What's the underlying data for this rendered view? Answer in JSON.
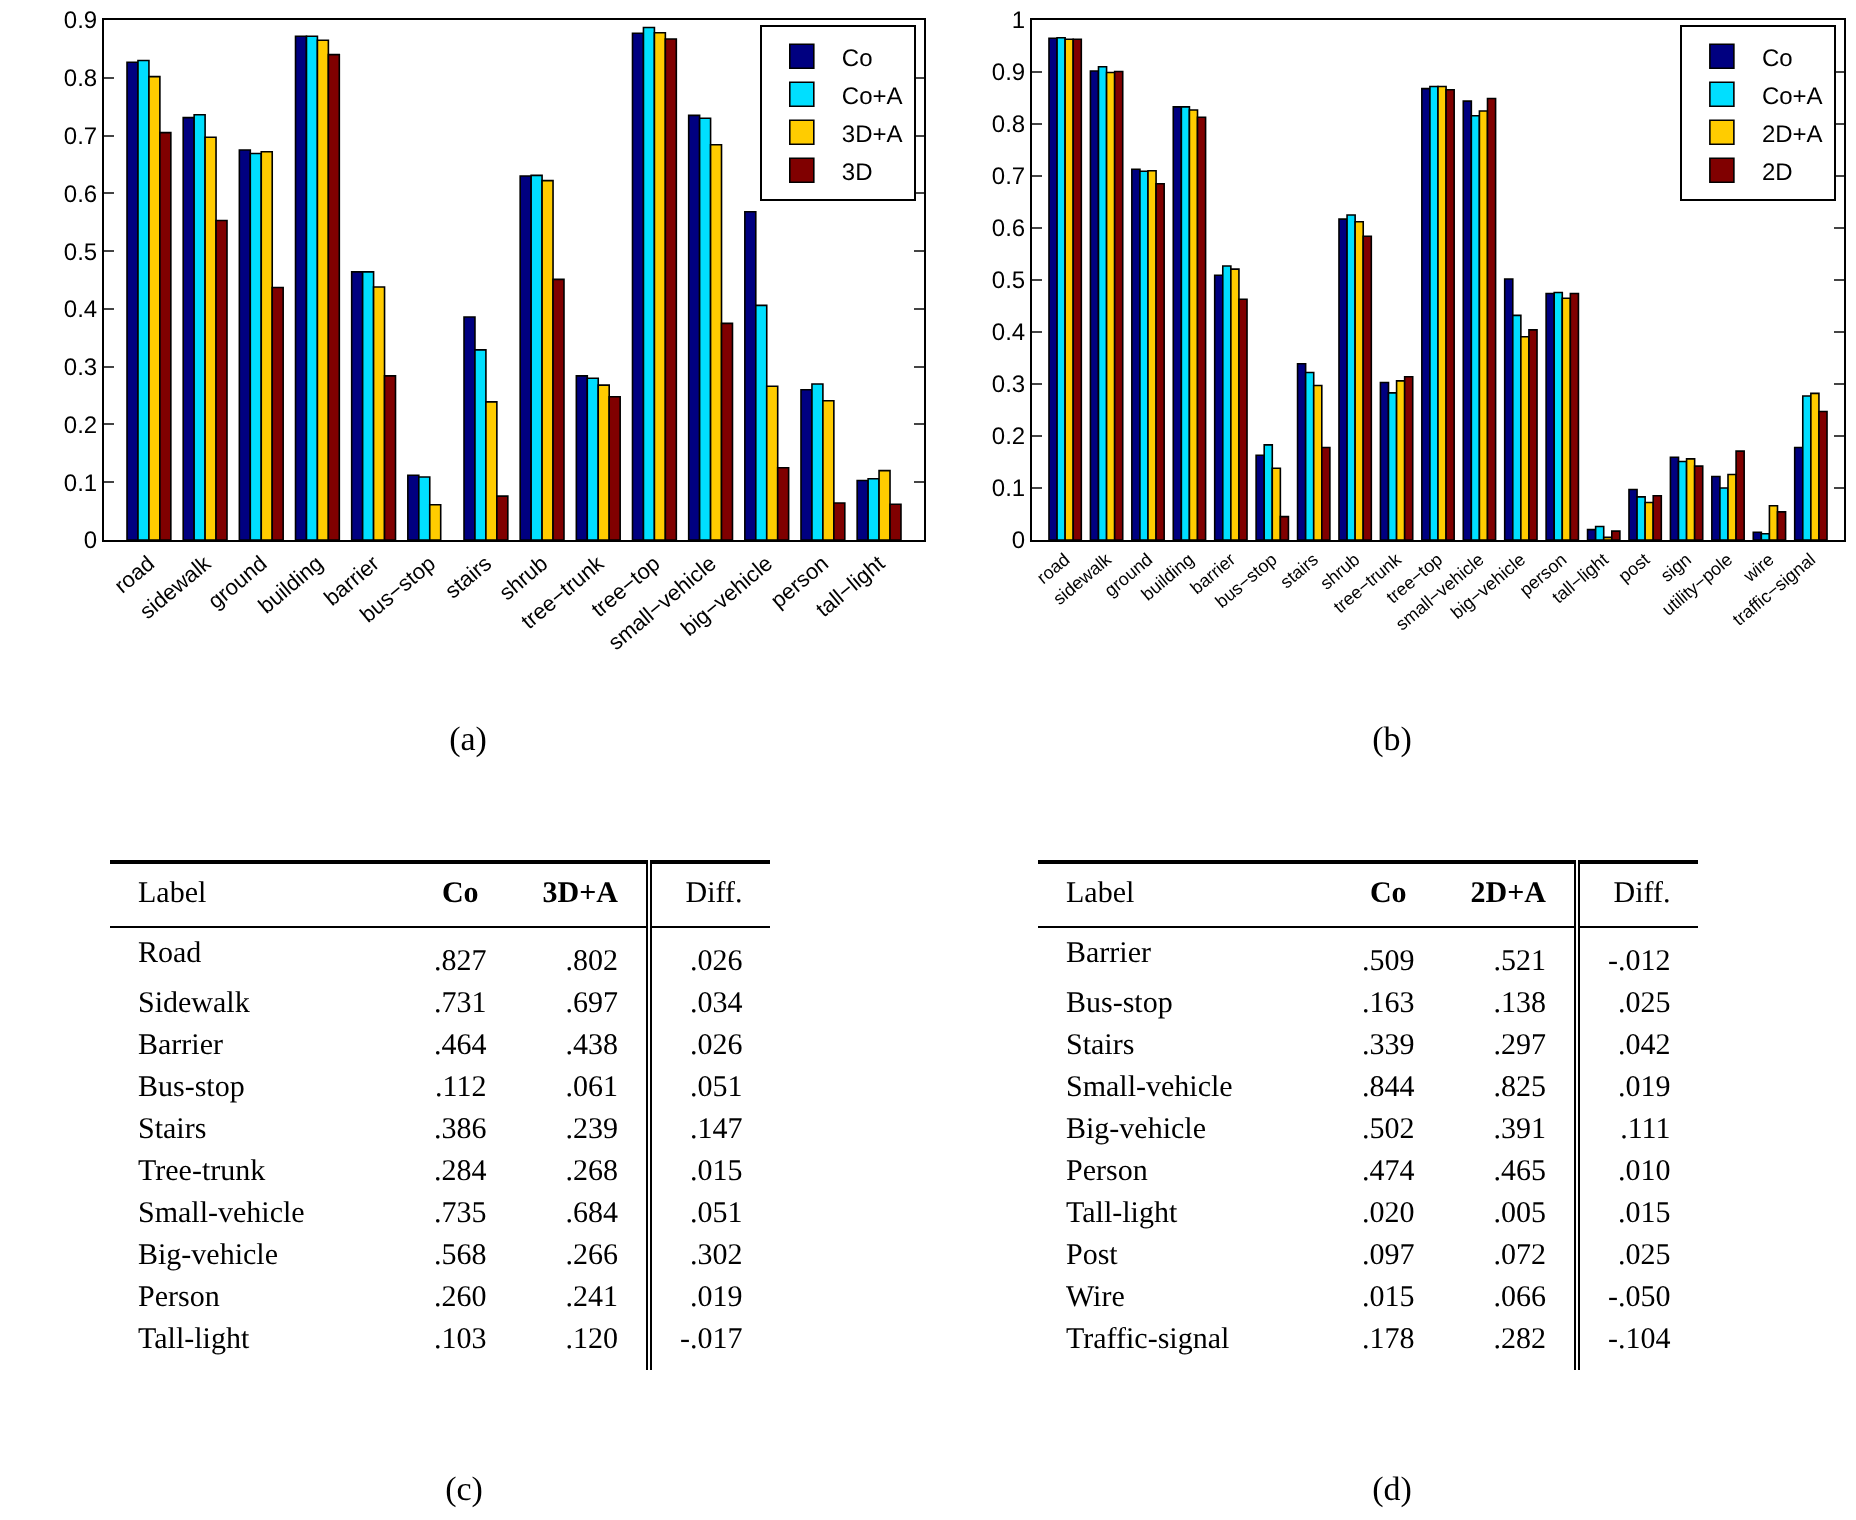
{
  "chart_data": [
    {
      "type": "bar",
      "categories": [
        "road",
        "sidewalk",
        "ground",
        "building",
        "barrier",
        "bus−stop",
        "stairs",
        "shrub",
        "tree−trunk",
        "tree−top",
        "small−vehicle",
        "big−vehicle",
        "person",
        "tall−light"
      ],
      "ylim": [
        0,
        0.9
      ],
      "yticks": [
        0,
        0.1,
        0.2,
        0.3,
        0.4,
        0.5,
        0.6,
        0.7,
        0.8,
        0.9
      ],
      "grid": false,
      "legend": "top right",
      "annotations": [
        "(a)"
      ],
      "series": [
        {
          "name": "Co",
          "color": "#000080",
          "values": [
            0.827,
            0.731,
            0.675,
            0.872,
            0.464,
            0.112,
            0.386,
            0.63,
            0.284,
            0.877,
            0.735,
            0.568,
            0.26,
            0.103
          ]
        },
        {
          "name": "Co+A",
          "color": "#00dfff",
          "values": [
            0.83,
            0.736,
            0.669,
            0.872,
            0.464,
            0.109,
            0.329,
            0.631,
            0.28,
            0.887,
            0.73,
            0.406,
            0.27,
            0.106
          ]
        },
        {
          "name": "3D+A",
          "color": "#ffcc00",
          "values": [
            0.802,
            0.697,
            0.672,
            0.865,
            0.438,
            0.061,
            0.239,
            0.622,
            0.268,
            0.878,
            0.684,
            0.266,
            0.241,
            0.12
          ]
        },
        {
          "name": "3D",
          "color": "#800000",
          "values": [
            0.705,
            0.553,
            0.437,
            0.84,
            0.284,
            null,
            0.076,
            0.451,
            0.248,
            0.867,
            0.375,
            0.125,
            0.064,
            0.062
          ]
        }
      ]
    },
    {
      "type": "bar",
      "categories": [
        "road",
        "sidewalk",
        "ground",
        "building",
        "barrier",
        "bus−stop",
        "stairs",
        "shrub",
        "tree−trunk",
        "tree−top",
        "small−vehicle",
        "big−vehicle",
        "person",
        "tall−light",
        "post",
        "sign",
        "utility−pole",
        "wire",
        "traffic−signal"
      ],
      "ylim": [
        0,
        1
      ],
      "yticks": [
        0,
        0.1,
        0.2,
        0.3,
        0.4,
        0.5,
        0.6,
        0.7,
        0.8,
        0.9,
        1
      ],
      "grid": false,
      "legend": "top right",
      "annotations": [
        "(b)"
      ],
      "series": [
        {
          "name": "Co",
          "color": "#000080",
          "values": [
            0.965,
            0.902,
            0.713,
            0.833,
            0.509,
            0.163,
            0.339,
            0.617,
            0.303,
            0.868,
            0.844,
            0.502,
            0.474,
            0.02,
            0.097,
            0.159,
            0.122,
            0.015,
            0.178
          ]
        },
        {
          "name": "Co+A",
          "color": "#00dfff",
          "values": [
            0.966,
            0.91,
            0.709,
            0.833,
            0.527,
            0.183,
            0.322,
            0.625,
            0.283,
            0.872,
            0.816,
            0.432,
            0.476,
            0.026,
            0.083,
            0.151,
            0.1,
            0.012,
            0.277
          ]
        },
        {
          "name": "2D+A",
          "color": "#ffcc00",
          "values": [
            0.963,
            0.899,
            0.71,
            0.827,
            0.521,
            0.138,
            0.297,
            0.612,
            0.306,
            0.872,
            0.825,
            0.391,
            0.465,
            0.005,
            0.072,
            0.156,
            0.126,
            0.066,
            0.282
          ]
        },
        {
          "name": "2D",
          "color": "#800000",
          "values": [
            0.963,
            0.901,
            0.685,
            0.813,
            0.463,
            0.045,
            0.178,
            0.584,
            0.314,
            0.866,
            0.849,
            0.404,
            0.474,
            0.017,
            0.085,
            0.142,
            0.171,
            0.054,
            0.247
          ]
        }
      ]
    },
    {
      "type": "other",
      "ylabel": "Label",
      "annotations": [
        "(c)"
      ],
      "categories": [
        "Road",
        "Sidewalk",
        "Barrier",
        "Bus-stop",
        "Stairs",
        "Tree-trunk",
        "Small-vehicle",
        "Big-vehicle",
        "Person",
        "Tall-light"
      ],
      "series": [
        {
          "name": "Co",
          "values": [
            0.827,
            0.731,
            0.464,
            0.112,
            0.386,
            0.284,
            0.735,
            0.568,
            0.26,
            0.103
          ],
          "value_labels": [
            ".827",
            ".731",
            ".464",
            ".112",
            ".386",
            ".284",
            ".735",
            ".568",
            ".260",
            ".103"
          ]
        },
        {
          "name": "3D+A",
          "values": [
            0.802,
            0.697,
            0.438,
            0.061,
            0.239,
            0.268,
            0.684,
            0.266,
            0.241,
            0.12
          ],
          "value_labels": [
            ".802",
            ".697",
            ".438",
            ".061",
            ".239",
            ".268",
            ".684",
            ".266",
            ".241",
            ".120"
          ]
        },
        {
          "name": "Diff.",
          "values": [
            0.026,
            0.034,
            0.026,
            0.051,
            0.147,
            0.015,
            0.051,
            0.302,
            0.019,
            -0.017
          ],
          "value_labels": [
            ".026",
            ".034",
            ".026",
            ".051",
            ".147",
            ".015",
            ".051",
            ".302",
            ".019",
            "-.017"
          ]
        }
      ]
    },
    {
      "type": "other",
      "ylabel": "Label",
      "annotations": [
        "(d)"
      ],
      "categories": [
        "Barrier",
        "Bus-stop",
        "Stairs",
        "Small-vehicle",
        "Big-vehicle",
        "Person",
        "Tall-light",
        "Post",
        "Wire",
        "Traffic-signal"
      ],
      "series": [
        {
          "name": "Co",
          "values": [
            0.509,
            0.163,
            0.339,
            0.844,
            0.502,
            0.474,
            0.02,
            0.097,
            0.015,
            0.178
          ],
          "value_labels": [
            ".509",
            ".163",
            ".339",
            ".844",
            ".502",
            ".474",
            ".020",
            ".097",
            ".015",
            ".178"
          ]
        },
        {
          "name": "2D+A",
          "values": [
            0.521,
            0.138,
            0.297,
            0.825,
            0.391,
            0.465,
            0.005,
            0.072,
            0.066,
            0.282
          ],
          "value_labels": [
            ".521",
            ".138",
            ".297",
            ".825",
            ".391",
            ".465",
            ".005",
            ".072",
            ".066",
            ".282"
          ]
        },
        {
          "name": "Diff.",
          "values": [
            -0.012,
            0.025,
            0.042,
            0.019,
            0.111,
            0.01,
            0.015,
            0.025,
            -0.05,
            -0.104
          ],
          "value_labels": [
            "-.012",
            ".025",
            ".042",
            ".019",
            ".111",
            ".010",
            ".015",
            ".025",
            "-.050",
            "-.104"
          ]
        }
      ]
    }
  ]
}
